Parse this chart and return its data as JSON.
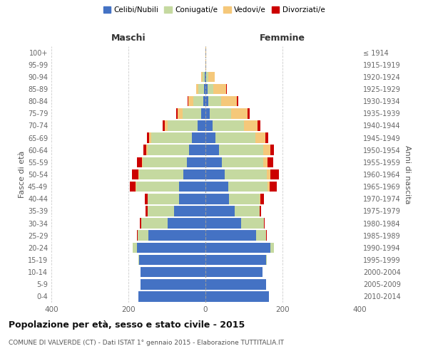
{
  "age_groups": [
    "0-4",
    "5-9",
    "10-14",
    "15-19",
    "20-24",
    "25-29",
    "30-34",
    "35-39",
    "40-44",
    "45-49",
    "50-54",
    "55-59",
    "60-64",
    "65-69",
    "70-74",
    "75-79",
    "80-84",
    "85-89",
    "90-94",
    "95-99",
    "100+"
  ],
  "birth_years": [
    "2010-2014",
    "2005-2009",
    "2000-2004",
    "1995-1999",
    "1990-1994",
    "1985-1989",
    "1980-1984",
    "1975-1979",
    "1970-1974",
    "1965-1969",
    "1960-1964",
    "1955-1959",
    "1950-1954",
    "1945-1949",
    "1940-1944",
    "1935-1939",
    "1930-1934",
    "1925-1929",
    "1920-1924",
    "1915-1919",
    "≤ 1914"
  ],
  "maschi_celibi": [
    175,
    168,
    168,
    172,
    178,
    148,
    98,
    82,
    68,
    68,
    58,
    48,
    42,
    36,
    20,
    12,
    6,
    4,
    2,
    0,
    0
  ],
  "maschi_coniugati": [
    0,
    0,
    0,
    2,
    10,
    28,
    68,
    68,
    82,
    112,
    115,
    115,
    108,
    105,
    78,
    48,
    25,
    14,
    6,
    0,
    0
  ],
  "maschi_vedovi": [
    0,
    0,
    0,
    0,
    0,
    0,
    0,
    0,
    0,
    2,
    2,
    2,
    3,
    5,
    8,
    12,
    14,
    6,
    4,
    0,
    0
  ],
  "maschi_divorziati": [
    0,
    0,
    0,
    0,
    0,
    2,
    4,
    5,
    8,
    14,
    16,
    12,
    8,
    5,
    5,
    4,
    2,
    0,
    0,
    0,
    0
  ],
  "femmine_celibi": [
    165,
    158,
    148,
    158,
    168,
    132,
    92,
    75,
    62,
    60,
    50,
    42,
    35,
    25,
    18,
    12,
    8,
    5,
    2,
    0,
    0
  ],
  "femmine_coniugati": [
    0,
    0,
    0,
    2,
    10,
    25,
    60,
    65,
    78,
    102,
    110,
    108,
    115,
    105,
    82,
    55,
    32,
    16,
    6,
    0,
    0
  ],
  "femmine_vedovi": [
    0,
    0,
    0,
    0,
    0,
    0,
    0,
    0,
    2,
    4,
    8,
    12,
    18,
    25,
    35,
    42,
    42,
    32,
    16,
    2,
    2
  ],
  "femmine_divorziati": [
    0,
    0,
    0,
    0,
    0,
    2,
    2,
    5,
    10,
    20,
    22,
    14,
    10,
    8,
    8,
    5,
    4,
    2,
    0,
    0,
    0
  ],
  "color_celibi": "#4472c4",
  "color_coniugati": "#c5d9a0",
  "color_vedovi": "#f5c87a",
  "color_divorziati": "#cc0000",
  "title": "Popolazione per età, sesso e stato civile - 2015",
  "subtitle": "COMUNE DI VALVERDE (CT) - Dati ISTAT 1° gennaio 2015 - Elaborazione TUTTITALIA.IT",
  "ylabel_left": "Fasce di età",
  "ylabel_right": "Anni di nascita",
  "xlabel_left": "Maschi",
  "xlabel_right": "Femmine",
  "xlim": 400,
  "background_color": "#ffffff",
  "grid_color": "#cccccc"
}
